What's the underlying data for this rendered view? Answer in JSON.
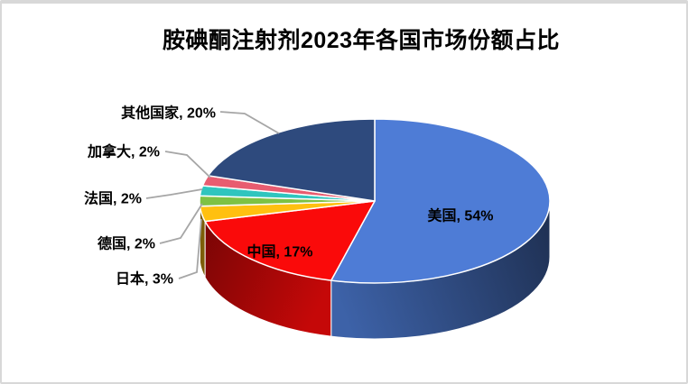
{
  "window": {
    "background_color": "#FFFFFF",
    "frame_border_color": "#D8D8D8"
  },
  "chart_data": {
    "type": "pie",
    "is_3d": true,
    "title": "胺碘酮注射剂2023年各国市场份额占比",
    "legend": "none",
    "unit": "%",
    "direction": "clockwise",
    "start_angle_deg": 0,
    "categories": [
      "美国",
      "中国",
      "日本",
      "德国",
      "法国",
      "加拿大",
      "其他国家"
    ],
    "values": [
      54,
      17,
      3,
      2,
      2,
      2,
      20
    ],
    "slices": [
      {
        "key": "usa",
        "name": "美国",
        "value": 54,
        "color": "#4E7CD6",
        "label": "美国, 54%",
        "label_placement": "inside"
      },
      {
        "key": "china",
        "name": "中国",
        "value": 17,
        "color": "#FA0A0A",
        "label": "中国, 17%",
        "label_placement": "inside"
      },
      {
        "key": "japan",
        "name": "日本",
        "value": 3,
        "color": "#FFC010",
        "label": "日本, 3%",
        "label_placement": "outside"
      },
      {
        "key": "germany",
        "name": "德国",
        "value": 2,
        "color": "#7DC244",
        "label": "德国, 2%",
        "label_placement": "outside"
      },
      {
        "key": "france",
        "name": "法国",
        "value": 2,
        "color": "#2FC5BE",
        "label": "法国, 2%",
        "label_placement": "outside"
      },
      {
        "key": "canada",
        "name": "加拿大",
        "value": 2,
        "color": "#E85C70",
        "label": "加拿大, 2%",
        "label_placement": "outside"
      },
      {
        "key": "others",
        "name": "其他国家",
        "value": 20,
        "color": "#2E4A7D",
        "label": "其他国家, 20%",
        "label_placement": "outside"
      }
    ]
  },
  "styles": {
    "title_color": "#000000",
    "label_color": "#000000",
    "slice_border_color": "#FFFFFF",
    "leader_line_color": "#A6A6A6"
  }
}
